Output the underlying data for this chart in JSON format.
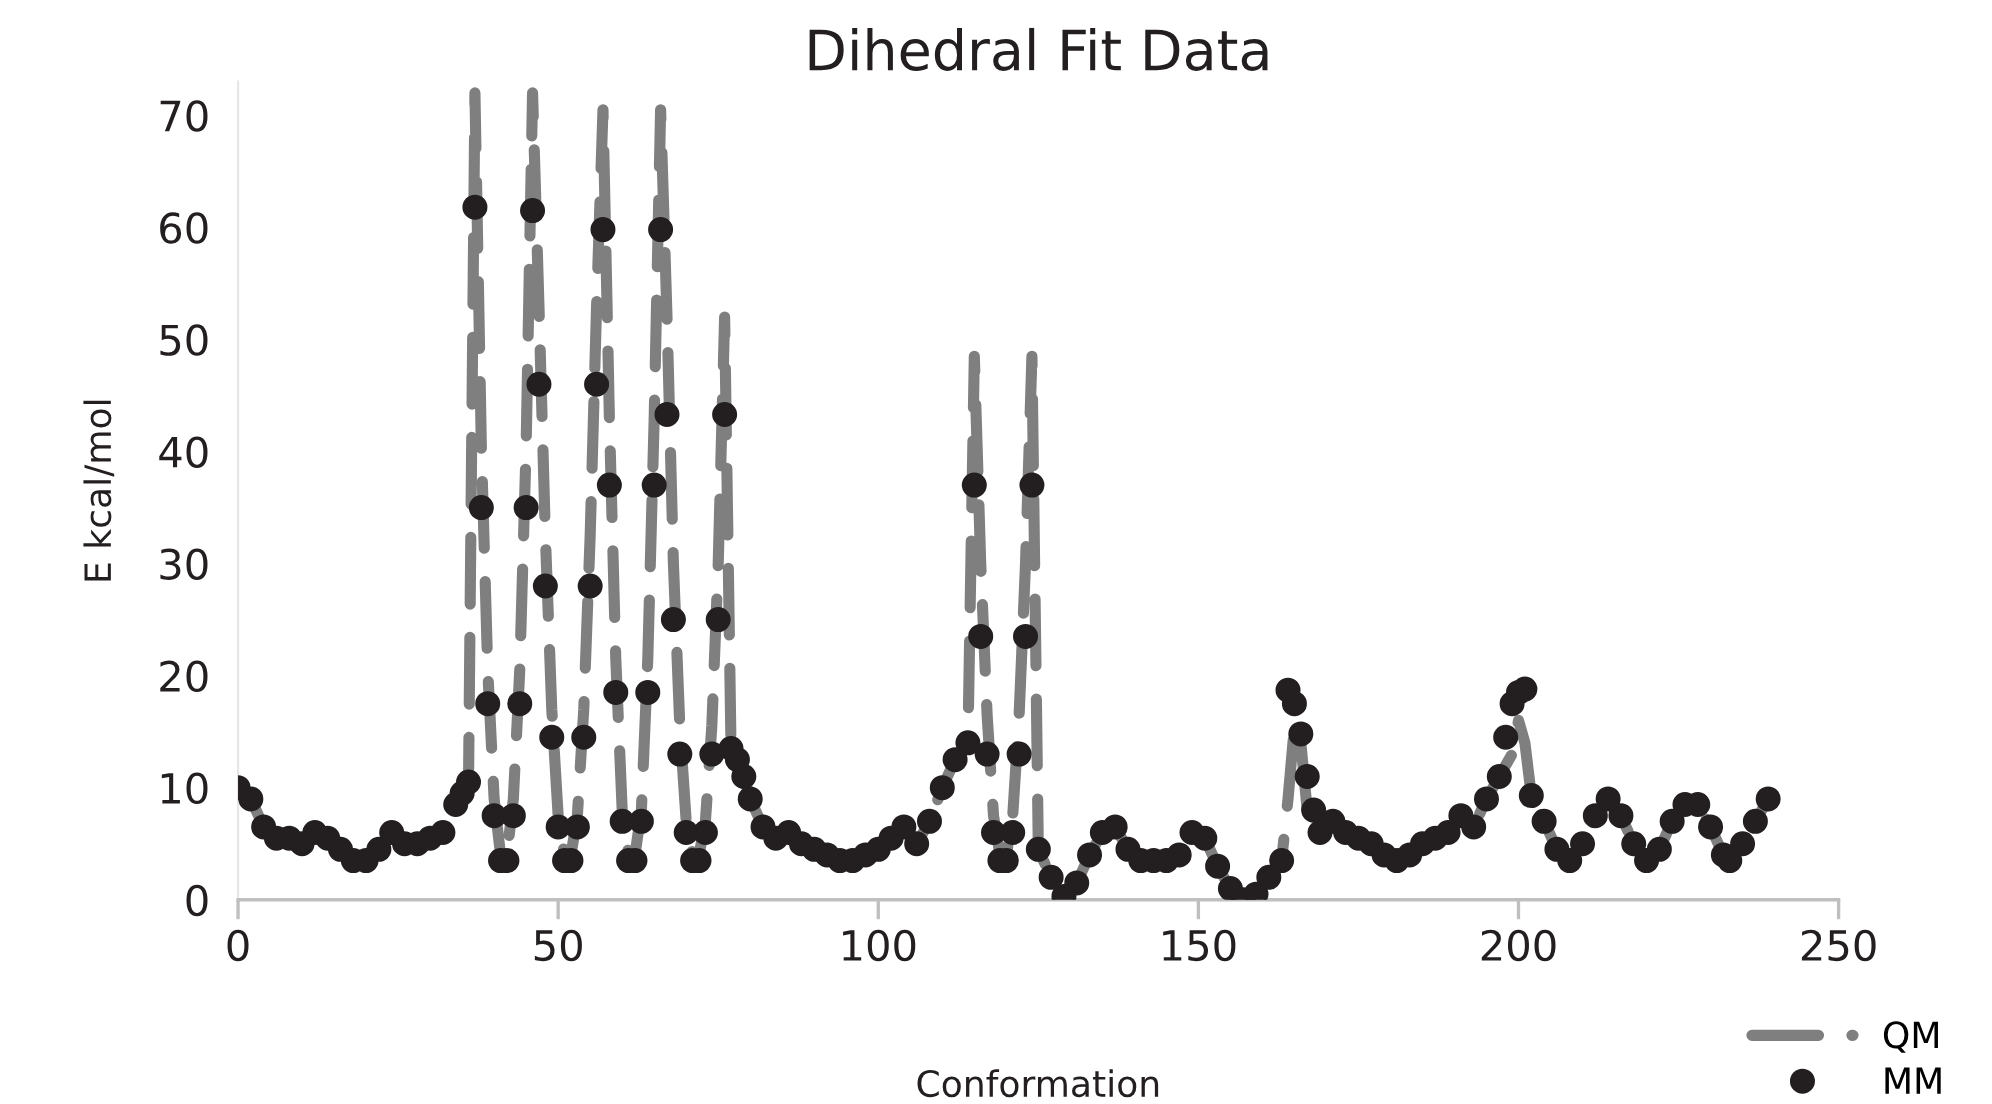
{
  "chart_data": {
    "type": "line",
    "title": "Dihedral Fit Data",
    "xlabel": "Conformation",
    "ylabel": "E kcal/mol",
    "x": [
      0,
      2,
      4,
      6,
      8,
      10,
      12,
      14,
      16,
      18,
      20,
      22,
      24,
      26,
      28,
      30,
      32,
      34,
      35,
      36,
      37,
      38,
      39,
      40,
      41,
      42,
      43,
      44,
      45,
      46,
      47,
      48,
      49,
      50,
      51,
      52,
      53,
      54,
      55,
      56,
      57,
      58,
      59,
      60,
      61,
      62,
      63,
      64,
      65,
      66,
      67,
      68,
      69,
      70,
      71,
      72,
      73,
      74,
      75,
      76,
      77,
      78,
      79,
      80,
      82,
      84,
      86,
      88,
      90,
      92,
      94,
      96,
      98,
      100,
      102,
      104,
      106,
      108,
      110,
      112,
      114,
      115,
      116,
      117,
      118,
      119,
      120,
      121,
      122,
      123,
      124,
      125,
      127,
      129,
      131,
      133,
      135,
      137,
      139,
      141,
      143,
      145,
      147,
      149,
      151,
      153,
      155,
      157,
      159,
      161,
      163,
      164,
      165,
      166,
      167,
      168,
      169,
      171,
      173,
      175,
      177,
      179,
      181,
      183,
      185,
      187,
      189,
      191,
      193,
      195,
      197,
      198,
      199,
      200,
      201,
      202,
      204,
      206,
      208,
      210,
      212,
      214,
      216,
      218,
      220,
      222,
      224,
      226,
      228,
      230,
      232,
      233,
      235,
      237,
      239
    ],
    "series": [
      {
        "name": "QM",
        "color": "#7f7f7f",
        "line_style": "dashed",
        "marker": "none",
        "values": [
          10,
          9,
          6.5,
          5.5,
          5.5,
          5,
          6,
          5.5,
          4.5,
          3.5,
          3.5,
          4.5,
          6,
          5,
          5,
          5.5,
          6,
          8.5,
          9.5,
          10.5,
          72,
          40.5,
          20.5,
          9,
          4,
          4,
          9,
          20.5,
          40.5,
          72,
          53,
          32.5,
          17,
          7.5,
          4,
          4,
          7.5,
          17,
          32.5,
          53,
          70.5,
          43,
          21.5,
          8,
          4,
          4,
          8,
          21.5,
          43,
          70.5,
          52,
          30,
          15.5,
          7,
          4,
          4,
          7,
          15.5,
          30,
          52,
          13.5,
          12.5,
          11,
          9,
          6.5,
          5.5,
          6,
          5,
          4.5,
          4,
          3.5,
          3.5,
          4,
          4.5,
          5.5,
          6.5,
          5,
          7,
          10,
          12.5,
          14,
          48.5,
          30,
          16.5,
          7.5,
          4,
          4,
          7.5,
          16.5,
          30,
          48.5,
          4.5,
          2,
          0.3,
          1.5,
          4,
          6,
          6.5,
          4.5,
          3.5,
          3.5,
          3.5,
          4,
          6,
          5.5,
          3,
          1,
          0,
          0.5,
          2,
          3.5,
          9,
          15.5,
          14,
          8,
          8,
          6,
          7,
          6,
          5.5,
          5,
          4,
          3.5,
          4,
          5,
          5.5,
          6,
          7.5,
          6.5,
          9,
          11,
          12,
          13,
          16,
          14,
          9.3,
          7,
          4.5,
          3.5,
          5,
          7.5,
          9,
          7.5,
          5,
          3.5,
          4.5,
          7,
          8.5,
          8.5,
          6.5,
          4,
          3.5,
          5,
          7,
          9
        ]
      },
      {
        "name": "MM",
        "type": "scatter",
        "color": "#231f20",
        "marker": "circle",
        "values": [
          10,
          9,
          6.5,
          5.5,
          5.5,
          5,
          6,
          5.5,
          4.5,
          3.5,
          3.5,
          4.5,
          6,
          5,
          5,
          5.5,
          6,
          8.5,
          9.5,
          10.5,
          61.8,
          35,
          17.5,
          7.5,
          3.5,
          3.5,
          7.5,
          17.5,
          35,
          61.5,
          46,
          28,
          14.5,
          6.5,
          3.5,
          3.5,
          6.5,
          14.5,
          28,
          46,
          59.8,
          37,
          18.5,
          7,
          3.5,
          3.5,
          7,
          18.5,
          37,
          59.8,
          43.3,
          25,
          13,
          6,
          3.5,
          3.5,
          6,
          13,
          25,
          43.3,
          13.5,
          12.5,
          11,
          9,
          6.5,
          5.5,
          6,
          5,
          4.5,
          4,
          3.5,
          3.5,
          4,
          4.5,
          5.5,
          6.5,
          5,
          7,
          10,
          12.5,
          14,
          37,
          23.5,
          13,
          6,
          3.5,
          3.5,
          6,
          13,
          23.5,
          37,
          4.5,
          2,
          0.3,
          1.5,
          4,
          6,
          6.5,
          4.5,
          3.5,
          3.5,
          3.5,
          4,
          6,
          5.5,
          3,
          1,
          0,
          0.5,
          2,
          3.5,
          18.7,
          17.5,
          14.8,
          11,
          8,
          6,
          7,
          6,
          5.5,
          5,
          4,
          3.5,
          4,
          5,
          5.5,
          6,
          7.5,
          6.5,
          9,
          11,
          14.5,
          17.5,
          18.5,
          18.8,
          9.3,
          7,
          4.5,
          3.5,
          5,
          7.5,
          9,
          7.5,
          5,
          3.5,
          4.5,
          7,
          8.5,
          8.5,
          6.5,
          4,
          3.5,
          5,
          7,
          9
        ]
      }
    ],
    "xlim": [
      0,
      250
    ],
    "xticks": [
      0,
      50,
      100,
      150,
      200,
      250
    ],
    "ylim": [
      0,
      73
    ],
    "yticks": [
      0,
      10,
      20,
      30,
      40,
      50,
      60,
      70
    ],
    "grid": false,
    "legend": "bottom right"
  }
}
